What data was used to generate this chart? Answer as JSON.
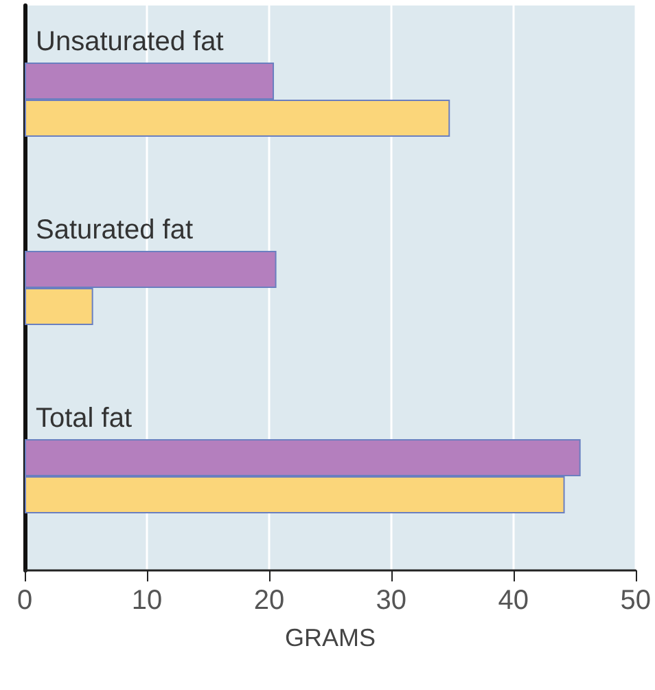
{
  "chart_data": {
    "type": "bar",
    "orientation": "horizontal",
    "xlabel": "GRAMS",
    "categories": [
      "Unsaturated fat",
      "Saturated fat",
      "Total fat"
    ],
    "series": [
      {
        "color": "#b47fbe",
        "values": [
          20.4,
          20.6,
          45.5
        ]
      },
      {
        "color": "#fbd67a",
        "values": [
          34.8,
          5.6,
          44.2
        ]
      }
    ],
    "xlim": [
      0,
      50
    ],
    "xticks": [
      0,
      10,
      20,
      30,
      40,
      50
    ],
    "grid": "x"
  }
}
